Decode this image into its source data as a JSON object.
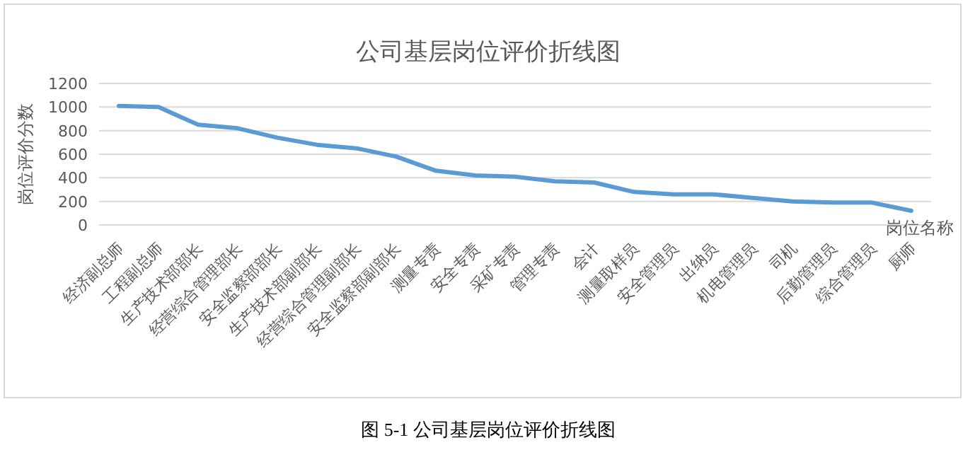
{
  "chart_data": {
    "type": "line",
    "title": "公司基层岗位评价折线图",
    "xlabel": "岗位名称",
    "ylabel": "岗位评价分数",
    "categories": [
      "经济副总师",
      "工程副总师",
      "生产技术部部长",
      "经营综合管理部长",
      "安全监察部部长",
      "生产技术部副部长",
      "经营综合管理副部长",
      "安全监察部副部长",
      "测量专责",
      "安全专责",
      "采矿专责",
      "管理专责",
      "会计",
      "测量取样员",
      "安全管理员",
      "出纳员",
      "机电管理员",
      "司机",
      "后勤管理员",
      "综合管理员",
      "厨师"
    ],
    "series": [
      {
        "color": "#5b9bd5",
        "values": [
          1010,
          1000,
          850,
          820,
          740,
          680,
          650,
          580,
          460,
          420,
          410,
          370,
          360,
          280,
          260,
          260,
          230,
          200,
          190,
          190,
          120
        ]
      }
    ],
    "ylim": [
      0,
      1200
    ],
    "yticks": [
      0,
      200,
      400,
      600,
      800,
      1000,
      1200
    ],
    "grid": "y",
    "marker": "none",
    "line_style": "solid",
    "annotations": [
      "图 5-1    公司基层岗位评价折线图"
    ]
  }
}
